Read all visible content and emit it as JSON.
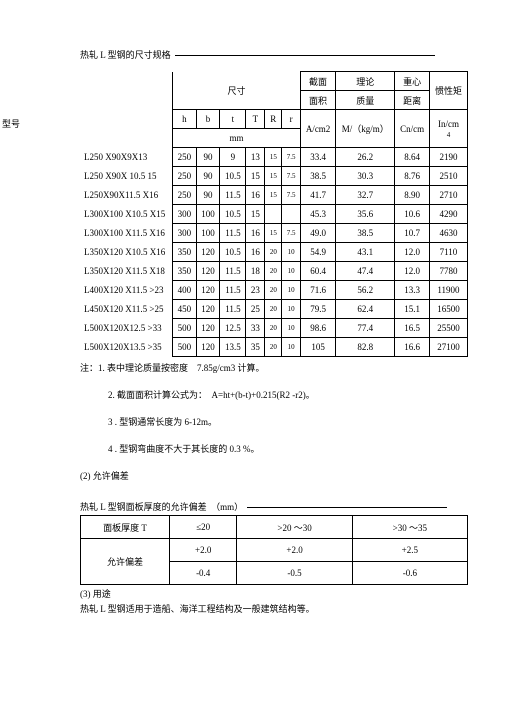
{
  "main_title": "热轧 L 型钢的尺寸规格",
  "header": {
    "dims": "尺寸",
    "model": "型号",
    "h": "h",
    "b": "b",
    "t": "t",
    "T": "T",
    "R": "R",
    "r": "r",
    "mm": "mm",
    "area": "截面",
    "theory": "理论",
    "centroid": "重心",
    "inertia": "惯性矩",
    "area2": "面积",
    "mass": "质量",
    "dist": "距离",
    "acm": "A/cm2",
    "mkg": "M/（kg/m）",
    "cn": "Cn/cm",
    "in": "In/cm",
    "in_sup": "4"
  },
  "rows": [
    {
      "m": "L250 X90X9X13",
      "h": "250",
      "b": "90",
      "t": "9",
      "T": "13",
      "R": "15",
      "r": "7.5",
      "A": "33.4",
      "M": "26.2",
      "C": "8.64",
      "I": "2190"
    },
    {
      "m": "L250 X90X 10.5 15",
      "h": "250",
      "b": "90",
      "t": "10.5",
      "T": "15",
      "R": "15",
      "r": "7.5",
      "A": "38.5",
      "M": "30.3",
      "C": "8.76",
      "I": "2510"
    },
    {
      "m": "L250X90X11.5 X16",
      "h": "250",
      "b": "90",
      "t": "11.5",
      "T": "16",
      "R": "15",
      "r": "7.5",
      "A": "41.7",
      "M": "32.7",
      "C": "8.90",
      "I": "2710"
    },
    {
      "m": "L300X100 X10.5 X15",
      "h": "300",
      "b": "100",
      "t": "10.5",
      "T": "15",
      "R": "",
      "r": "",
      "A": "45.3",
      "M": "35.6",
      "C": "10.6",
      "I": "4290"
    },
    {
      "m": "L300X100 X11.5 X16",
      "h": "300",
      "b": "100",
      "t": "11.5",
      "T": "16",
      "R": "15",
      "r": "7.5",
      "A": "49.0",
      "M": "38.5",
      "C": "10.7",
      "I": "4630"
    },
    {
      "m": "L350X120 X10.5 X16",
      "h": "350",
      "b": "120",
      "t": "10.5",
      "T": "16",
      "R": "20",
      "r": "10",
      "A": "54.9",
      "M": "43.1",
      "C": "12.0",
      "I": "7110"
    },
    {
      "m": "L350X120 X11.5 X18",
      "h": "350",
      "b": "120",
      "t": "11.5",
      "T": "18",
      "R": "20",
      "r": "10",
      "A": "60.4",
      "M": "47.4",
      "C": "12.0",
      "I": "7780"
    },
    {
      "m": "L400X120 X11.5 >23",
      "h": "400",
      "b": "120",
      "t": "11.5",
      "T": "23",
      "R": "20",
      "r": "10",
      "A": "71.6",
      "M": "56.2",
      "C": "13.3",
      "I": "11900"
    },
    {
      "m": "L450X120 X11.5 >25",
      "h": "450",
      "b": "120",
      "t": "11.5",
      "T": "25",
      "R": "20",
      "r": "10",
      "A": "79.5",
      "M": "62.4",
      "C": "15.1",
      "I": "16500"
    },
    {
      "m": "L500X120X12.5 >33",
      "h": "500",
      "b": "120",
      "t": "12.5",
      "T": "33",
      "R": "20",
      "r": "10",
      "A": "98.6",
      "M": "77.4",
      "C": "16.5",
      "I": "25500"
    },
    {
      "m": "L500X120X13.5 >35",
      "h": "500",
      "b": "120",
      "t": "13.5",
      "T": "35",
      "R": "20",
      "r": "10",
      "A": "105",
      "M": "82.8",
      "C": "16.6",
      "I": "27100"
    }
  ],
  "notes": {
    "n1": "注：1. 表中理论质量按密度　7.85g/cm3 计算。",
    "n2": "2. 截面面积计算公式为：　A=ht+(b-t)+0.215(R2 -r2)。",
    "n3": "3 . 型钢通常长度为 6-12m。",
    "n4": "4 . 型钢弯曲度不大于其长度的 0.3 %。"
  },
  "section2": "(2) 允许偏差",
  "tol_title": "热轧 L 型钢面板厚度的允许偏差　（mm）",
  "tol": {
    "row1": [
      "面板厚度 T",
      "≤20",
      ">20 ～30",
      ">30 ～35"
    ],
    "row2_label": "允许偏差",
    "row2": [
      "+2.0",
      "+2.0",
      "+2.5"
    ],
    "row3": [
      "-0.4",
      "-0.5",
      "-0.6"
    ]
  },
  "section3": "(3) 用途",
  "footer_text": "热轧 L 型钢适用于造船、海洋工程结构及一般建筑结构等。"
}
